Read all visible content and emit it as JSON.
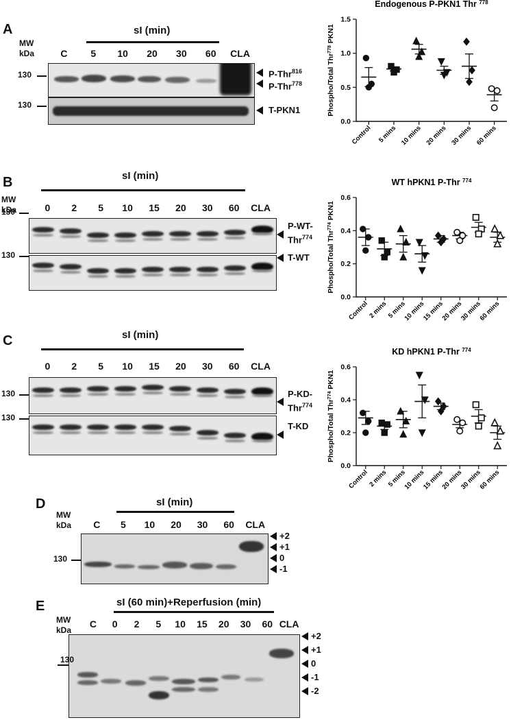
{
  "panels": {
    "A": {
      "label": "A",
      "mw": "MW",
      "kda": "kDa",
      "condition": "sI (min)",
      "lanes": [
        "C",
        "5",
        "10",
        "20",
        "30",
        "60",
        "CLA"
      ],
      "marker": "130",
      "side_labels": [
        "P-Thr",
        "P-Thr",
        "T-PKN1"
      ],
      "side_sup": [
        "816",
        "778"
      ]
    },
    "B": {
      "label": "B",
      "mw": "MW",
      "kda": "kDa",
      "condition": "sI (min)",
      "lanes": [
        "0",
        "2",
        "5",
        "10",
        "15",
        "20",
        "30",
        "60",
        "CLA"
      ],
      "marker": "130",
      "side_label_1a": "P-WT-",
      "side_label_1b": "Thr",
      "side_sup": "774",
      "side_label_2": "T-WT"
    },
    "C": {
      "label": "C",
      "condition": "sI (min)",
      "lanes": [
        "0",
        "2",
        "5",
        "10",
        "15",
        "20",
        "30",
        "60",
        "CLA"
      ],
      "marker": "130",
      "side_label_1a": "P-KD-",
      "side_label_1b": "Thr",
      "side_sup": "774",
      "side_label_2": "T-KD"
    },
    "D": {
      "label": "D",
      "mw": "MW",
      "kda": "kDa",
      "condition": "sI (min)",
      "lanes": [
        "C",
        "5",
        "10",
        "20",
        "30",
        "60",
        "CLA"
      ],
      "marker": "130",
      "shifts": [
        "+2",
        "+1",
        "0",
        "-1"
      ]
    },
    "E": {
      "label": "E",
      "mw": "MW",
      "kda": "kDa",
      "condition": "sI (60 min)+Reperfusion (min)",
      "lanes": [
        "C",
        "0",
        "2",
        "5",
        "10",
        "15",
        "20",
        "30",
        "60",
        "CLA"
      ],
      "marker": "130",
      "shifts": [
        "+2",
        "+1",
        "0",
        "-1",
        "-2"
      ]
    }
  },
  "chart_data": [
    {
      "type": "scatter",
      "title": "Endogenous P-PKN1 Thr",
      "title_sup": "778",
      "ylabel": "Phospho/Total Thr",
      "ylabel_sup": "778",
      "ylabel_suffix": " PKN1",
      "ylim": [
        0,
        1.5
      ],
      "yticks": [
        "0.0",
        "0.5",
        "1.0",
        "1.5"
      ],
      "categories": [
        "Control",
        "5 mins",
        "10 mins",
        "20 mins",
        "30 mins",
        "60 mins"
      ],
      "markers": [
        "circle",
        "square",
        "triangle",
        "triangle-down",
        "diamond",
        "circle-open"
      ],
      "points": [
        [
          0.93,
          0.55,
          0.5
        ],
        [
          0.81,
          0.76,
          0.72
        ],
        [
          1.18,
          1.02,
          0.95
        ],
        [
          0.88,
          0.72,
          0.68
        ],
        [
          1.17,
          0.75,
          0.58
        ],
        [
          0.48,
          0.45,
          0.2
        ]
      ],
      "means": [
        0.65,
        0.77,
        1.06,
        0.75,
        0.81,
        0.39
      ],
      "sem": [
        0.14,
        0.03,
        0.07,
        0.06,
        0.18,
        0.09
      ]
    },
    {
      "type": "scatter",
      "title": "WT hPKN1 P-Thr",
      "title_sup": "774",
      "ylabel": "Phospho/Total Thr",
      "ylabel_sup": "774",
      "ylabel_suffix": " PKN1",
      "ylim": [
        0,
        0.6
      ],
      "yticks": [
        "0.0",
        "0.2",
        "0.4",
        "0.6"
      ],
      "categories": [
        "Control",
        "2 mins",
        "5 mins",
        "10 mins",
        "15 mins",
        "20 mins",
        "30 mins",
        "60 mins"
      ],
      "markers": [
        "circle",
        "square",
        "triangle",
        "triangle-down",
        "diamond",
        "circle-open",
        "square-open",
        "triangle-open"
      ],
      "points": [
        [
          0.41,
          0.36,
          0.28
        ],
        [
          0.34,
          0.27,
          0.24
        ],
        [
          0.41,
          0.33,
          0.24
        ],
        [
          0.33,
          0.25,
          0.16
        ],
        [
          0.37,
          0.35,
          0.33
        ],
        [
          0.39,
          0.37,
          0.34
        ],
        [
          0.48,
          0.41,
          0.38
        ],
        [
          0.41,
          0.37,
          0.32
        ]
      ],
      "means": [
        0.36,
        0.29,
        0.32,
        0.26,
        0.35,
        0.37,
        0.42,
        0.36
      ],
      "sem": [
        0.05,
        0.04,
        0.05,
        0.05,
        0.02,
        0.02,
        0.03,
        0.03
      ]
    },
    {
      "type": "scatter",
      "title": "KD hPKN1 P-Thr",
      "title_sup": "774",
      "ylabel": "Phospho/Total Thr",
      "ylabel_sup": "774",
      "ylabel_suffix": " PKN1",
      "ylim": [
        0,
        0.6
      ],
      "yticks": [
        "0.0",
        "0.2",
        "0.4",
        "0.6"
      ],
      "categories": [
        "Control",
        "2 mins",
        "5 mins",
        "10 mins",
        "15 mins",
        "20 mins",
        "30 mins",
        "60 mins"
      ],
      "markers": [
        "circle",
        "square",
        "triangle",
        "triangle-down",
        "diamond",
        "circle-open",
        "square-open",
        "triangle-open"
      ],
      "points": [
        [
          0.32,
          0.27,
          0.2
        ],
        [
          0.26,
          0.25,
          0.2
        ],
        [
          0.33,
          0.27,
          0.19
        ],
        [
          0.55,
          0.4,
          0.2
        ],
        [
          0.39,
          0.36,
          0.33
        ],
        [
          0.28,
          0.26,
          0.21
        ],
        [
          0.37,
          0.29,
          0.24
        ],
        [
          0.26,
          0.21,
          0.12
        ]
      ],
      "means": [
        0.29,
        0.24,
        0.28,
        0.39,
        0.36,
        0.25,
        0.3,
        0.2
      ],
      "sem": [
        0.04,
        0.02,
        0.05,
        0.1,
        0.02,
        0.02,
        0.04,
        0.04
      ]
    }
  ]
}
